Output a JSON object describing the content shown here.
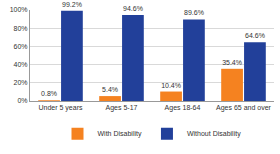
{
  "chart_data": {
    "type": "bar",
    "categories": [
      "Under 5 years",
      "Ages 5-17",
      "Ages 18-64",
      "Ages 65 and over"
    ],
    "series": [
      {
        "name": "With Disability",
        "color": "#f58220",
        "values": [
          0.8,
          5.4,
          10.4,
          35.4
        ],
        "value_labels": [
          "0.8%",
          "5.4%",
          "10.4%",
          "35.4%"
        ]
      },
      {
        "name": "Without Disability",
        "color": "#22409a",
        "values": [
          99.2,
          94.6,
          89.6,
          64.6
        ],
        "value_labels": [
          "99.2%",
          "94.6%",
          "89.6%",
          "64.6%"
        ]
      }
    ],
    "ylim": [
      0,
      100
    ],
    "yticks": [
      {
        "value": 0,
        "label": "0%"
      },
      {
        "value": 20,
        "label": "20%"
      },
      {
        "value": 40,
        "label": "40%"
      },
      {
        "value": 60,
        "label": "60%"
      },
      {
        "value": 80,
        "label": "80%"
      },
      {
        "value": 100,
        "label": "100%"
      }
    ],
    "grid": true,
    "legend": "bottom",
    "data_labels": true
  }
}
